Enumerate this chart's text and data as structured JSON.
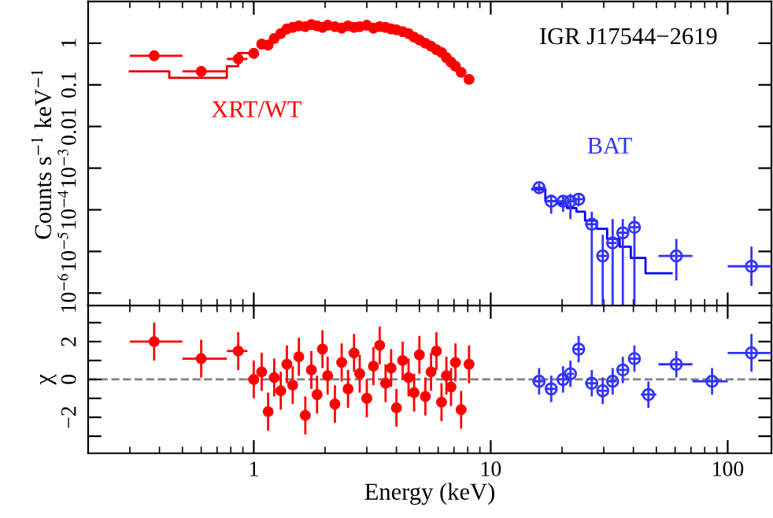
{
  "chart_data": [
    {
      "type": "scatter",
      "ylabel": "Counts s$^{−1}$ keV$^{−1}$",
      "annotations": [
        "IGR J17544−2619"
      ],
      "log": "xy",
      "xlim": [
        0.2,
        153
      ],
      "ylim": [
        5e-07,
        10
      ],
      "xticks": [
        1,
        10,
        100
      ],
      "yticks": [
        {
          "value": 1e-06,
          "label": "10$^{−6}$"
        },
        {
          "value": 1e-05,
          "label": "10$^{−5}$"
        },
        {
          "value": 0.0001,
          "label": "10$^{−4}$"
        },
        {
          "value": 0.001,
          "label": "10$^{−3}$"
        },
        0.01,
        0.1,
        1
      ],
      "tick_labels": "y",
      "series": [
        {
          "name": "XRT/WT",
          "color": "#ff0000",
          "marker": "circle",
          "x": [
            0.38,
            0.6,
            0.86,
            1.0,
            1.08,
            1.15,
            1.22,
            1.3,
            1.38,
            1.46,
            1.55,
            1.65,
            1.75,
            1.85,
            1.95,
            2.05,
            2.2,
            2.35,
            2.5,
            2.65,
            2.8,
            3.0,
            3.2,
            3.4,
            3.6,
            3.8,
            4.0,
            4.25,
            4.5,
            4.75,
            5.0,
            5.3,
            5.6,
            5.9,
            6.2,
            6.5,
            6.8,
            7.1,
            7.5,
            8.1
          ],
          "values": [
            0.5,
            0.21,
            0.42,
            0.57,
            0.95,
            0.9,
            1.3,
            1.7,
            2.2,
            2.4,
            2.6,
            2.5,
            2.8,
            2.6,
            2.4,
            2.7,
            2.5,
            2.3,
            2.6,
            2.4,
            2.5,
            2.7,
            2.3,
            2.5,
            2.4,
            2.2,
            2.1,
            1.9,
            1.7,
            1.4,
            1.2,
            1.0,
            0.85,
            0.7,
            0.6,
            0.45,
            0.35,
            0.28,
            0.2,
            0.135
          ],
          "xerrors": [
            [
              0.3,
              0.5
            ],
            [
              0.5,
              0.77
            ],
            [
              0.77,
              0.94
            ],
            [
              0.94,
              1.05
            ],
            null,
            null,
            null,
            null,
            null,
            null,
            null,
            null,
            null,
            null,
            null,
            null,
            null,
            null,
            null,
            null,
            null,
            null,
            null,
            null,
            null,
            null,
            null,
            null,
            null,
            null,
            null,
            null,
            null,
            null,
            null,
            null,
            null,
            null,
            null,
            null
          ]
        },
        {
          "type": "step",
          "marker": "none",
          "color": "#e00000",
          "x": [
            0.3,
            0.44,
            0.77,
            0.86,
            1.0
          ],
          "values": [
            0.21,
            0.148,
            0.28,
            0.58,
            0.58
          ]
        },
        {
          "name": "BAT",
          "color": "#3333ff",
          "marker": "circle",
          "x": [
            16,
            18,
            20.2,
            21.7,
            23.5,
            26.7,
            29.7,
            32.7,
            36.1,
            40.4,
            46.3,
            60.7,
            85.9,
            126
          ],
          "values": [
            0.00034,
            0.00016,
            0.00016,
            0.00016,
            0.00018,
            4.5e-05,
            7.8e-06,
            1.6e-05,
            2.8e-05,
            3.8e-05,
            null,
            7.8e-06,
            null,
            4.4e-06
          ],
          "errors": [
            [
              0.00026,
              0.00043
            ],
            [
              8e-05,
              0.00023
            ],
            [
              9e-05,
              0.00022
            ],
            [
              6e-05,
              0.00024
            ],
            [
              0.00012,
              0.00023
            ],
            [
              5e-07,
              9e-05
            ],
            [
              5e-07,
              2.5e-05
            ],
            [
              5e-07,
              6e-05
            ],
            [
              5e-07,
              6e-05
            ],
            [
              5e-07,
              7e-05
            ],
            null,
            [
              2e-06,
              2e-05
            ],
            null,
            [
              1.5e-06,
              1.3e-05
            ]
          ],
          "xerrors": [
            [
              15,
              17
            ],
            [
              17,
              19
            ],
            [
              19,
              21
            ],
            [
              21,
              22.5
            ],
            [
              22.5,
              25
            ],
            [
              25,
              28
            ],
            [
              28,
              31
            ],
            [
              31,
              34
            ],
            [
              34,
              38
            ],
            [
              38,
              43
            ],
            null,
            [
              51,
              71
            ],
            null,
            [
              100,
              153
            ]
          ]
        },
        {
          "type": "step",
          "marker": "none",
          "color": "#0000ff",
          "x": [
            15,
            17,
            19,
            21,
            23,
            25,
            28,
            31,
            35,
            39,
            45,
            58
          ],
          "values": [
            0.00031,
            0.00016,
            0.00014,
            0.00011,
            9e-05,
            5.5e-05,
            3.5e-05,
            2e-05,
            1.3e-05,
            7e-06,
            3e-06,
            3e-06
          ]
        }
      ]
    },
    {
      "type": "scatter",
      "xlabel": "Energy (keV)",
      "ylabel": "χ",
      "log": "x",
      "xlim": [
        0.2,
        153
      ],
      "ylim": [
        -3.9,
        3.9
      ],
      "xticks": [
        1,
        10,
        100
      ],
      "yticks": [
        {
          "value": -3,
          "label": null
        },
        {
          "value": -2,
          "label": "−2"
        },
        {
          "value": -1,
          "label": null
        },
        0,
        {
          "value": 1,
          "label": null
        },
        2,
        {
          "value": 3,
          "label": null
        }
      ],
      "marker": "circle",
      "ref_lines": [
        {
          "axis": "y",
          "value": 0,
          "color": "#808080",
          "line_style": "dashed"
        }
      ],
      "series": [
        {
          "color": "#ff0000",
          "x": [
            0.38,
            0.6,
            0.86,
            1.0,
            1.08,
            1.15,
            1.22,
            1.3,
            1.38,
            1.46,
            1.55,
            1.65,
            1.75,
            1.85,
            1.95,
            2.05,
            2.2,
            2.35,
            2.5,
            2.65,
            2.8,
            3.0,
            3.2,
            3.4,
            3.6,
            3.8,
            4.0,
            4.25,
            4.5,
            4.75,
            5.0,
            5.3,
            5.6,
            5.9,
            6.2,
            6.5,
            6.8,
            7.1,
            7.5,
            8.1
          ],
          "values": [
            2.0,
            1.1,
            1.5,
            0.0,
            0.4,
            -1.7,
            0.1,
            -0.6,
            0.8,
            -0.3,
            1.2,
            -1.9,
            0.5,
            -0.8,
            1.6,
            0.2,
            -1.3,
            0.9,
            -0.5,
            1.4,
            0.3,
            -1.0,
            0.7,
            1.8,
            -0.2,
            0.6,
            -1.5,
            1.0,
            0.1,
            -0.7,
            1.3,
            -0.9,
            0.4,
            1.5,
            -1.2,
            0.2,
            -0.4,
            0.9,
            -1.6,
            0.8
          ],
          "errors": [
            1,
            1,
            1,
            1,
            1,
            1,
            1,
            1,
            1,
            1,
            1,
            1,
            1,
            1,
            1,
            1,
            1,
            1,
            1,
            1,
            1,
            1,
            1,
            1,
            1,
            1,
            1,
            1,
            1,
            1,
            1,
            1,
            1,
            1,
            1,
            1,
            1,
            1,
            1,
            1
          ],
          "xerrors": [
            [
              0.3,
              0.5
            ],
            [
              0.5,
              0.77
            ],
            [
              0.77,
              0.94
            ],
            [
              0.94,
              1.05
            ],
            null,
            null,
            null,
            null,
            null,
            null,
            null,
            null,
            null,
            null,
            null,
            null,
            null,
            null,
            null,
            null,
            null,
            null,
            null,
            null,
            null,
            null,
            null,
            null,
            null,
            null,
            null,
            null,
            null,
            null,
            null,
            null,
            null,
            null,
            null,
            null
          ]
        },
        {
          "color": "#3333ff",
          "x": [
            16,
            18,
            20.2,
            21.7,
            23.5,
            26.7,
            29.7,
            32.7,
            36.1,
            40.4,
            46.3,
            60.7,
            85.9,
            126
          ],
          "values": [
            -0.1,
            -0.5,
            0.0,
            0.3,
            1.6,
            -0.2,
            -0.6,
            -0.1,
            0.5,
            1.1,
            -0.8,
            0.8,
            -0.1,
            1.4
          ],
          "errors": [
            0.7,
            0.7,
            0.7,
            0.7,
            0.7,
            0.7,
            0.7,
            0.7,
            0.7,
            0.7,
            0.7,
            0.7,
            0.7,
            1
          ],
          "xerrors": [
            [
              15,
              17
            ],
            [
              17,
              19
            ],
            [
              19,
              21
            ],
            [
              21,
              22.5
            ],
            [
              22.5,
              25
            ],
            [
              25,
              28
            ],
            [
              28,
              31
            ],
            [
              31,
              34
            ],
            [
              34,
              38
            ],
            [
              38,
              43
            ],
            [
              43,
              50
            ],
            [
              51,
              71
            ],
            [
              71,
              100
            ],
            [
              100,
              153
            ]
          ]
        }
      ]
    }
  ]
}
